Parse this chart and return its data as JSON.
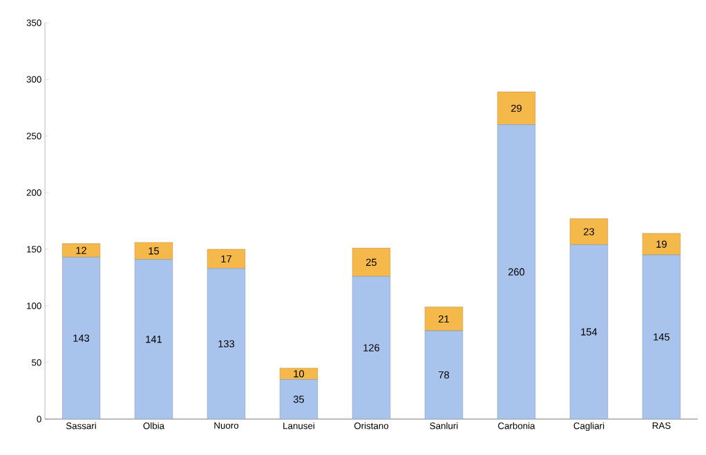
{
  "chart_data": {
    "type": "bar",
    "stacked": true,
    "data_labels": true,
    "grid": false,
    "legend": false,
    "categories": [
      "Sassari",
      "Olbia",
      "Nuoro",
      "Lanusei",
      "Oristano",
      "Sanluri",
      "Carbonia",
      "Cagliari",
      "RAS"
    ],
    "series": [
      {
        "color": "#a9c4ec",
        "values": [
          143,
          141,
          133,
          35,
          126,
          78,
          260,
          154,
          145
        ]
      },
      {
        "color": "#f5b84a",
        "values": [
          12,
          15,
          17,
          10,
          25,
          21,
          29,
          23,
          19
        ]
      }
    ],
    "ylim": [
      0,
      350
    ],
    "yticks": [
      0,
      50,
      100,
      150,
      200,
      250,
      300,
      350
    ]
  }
}
